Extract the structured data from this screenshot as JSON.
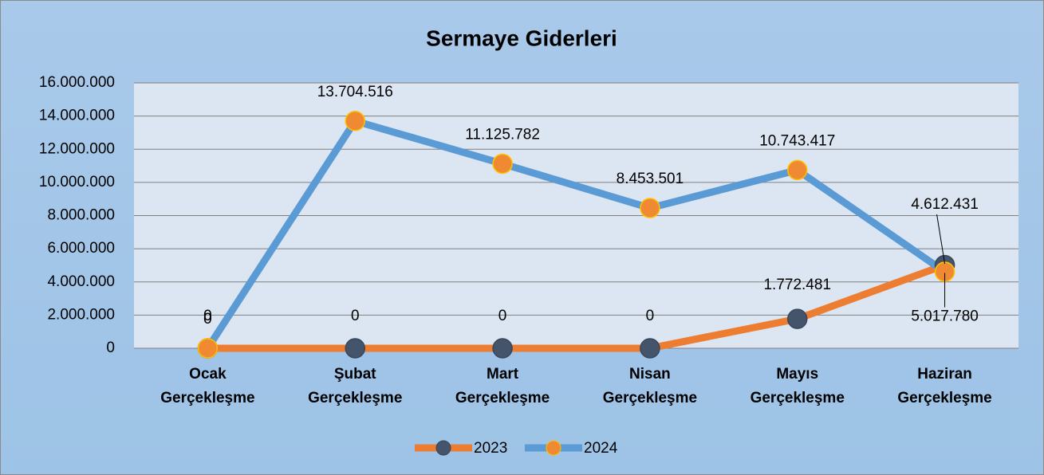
{
  "chart_data": {
    "type": "line",
    "title": "Sermaye Giderleri",
    "categories": [
      "Ocak Gerçekleşme",
      "Şubat Gerçekleşme",
      "Mart Gerçekleşme",
      "Nisan Gerçekleşme",
      "Mayıs Gerçekleşme",
      "Haziran Gerçekleşme"
    ],
    "series": [
      {
        "name": "2023",
        "color": "#ed7d31",
        "marker_color": "#44546a",
        "values": [
          0,
          0,
          0,
          0,
          1772481,
          5017780
        ],
        "value_labels": [
          "0",
          "0",
          "0",
          "0",
          "1.772.481",
          "5.017.780"
        ]
      },
      {
        "name": "2024",
        "color": "#5b9bd5",
        "marker_color": "#f08a32",
        "values": [
          0,
          13704516,
          11125782,
          8453501,
          10743417,
          4612431
        ],
        "value_labels": [
          "0",
          "13.704.516",
          "11.125.782",
          "8.453.501",
          "10.743.417",
          "4.612.431"
        ]
      }
    ],
    "ylim": [
      0,
      16000000
    ],
    "yticks": [
      0,
      {
        "value": 2000000,
        "label": "2.000.000"
      },
      {
        "value": 4000000,
        "label": "4.000.000"
      },
      {
        "value": 6000000,
        "label": "6.000.000"
      },
      {
        "value": 8000000,
        "label": "8.000.000"
      },
      {
        "value": 10000000,
        "label": "10.000.000"
      },
      {
        "value": 12000000,
        "label": "12.000.000"
      },
      {
        "value": 14000000,
        "label": "14.000.000"
      },
      {
        "value": 16000000,
        "label": "16.000.000"
      }
    ],
    "grid": true,
    "legend": "bottom"
  }
}
